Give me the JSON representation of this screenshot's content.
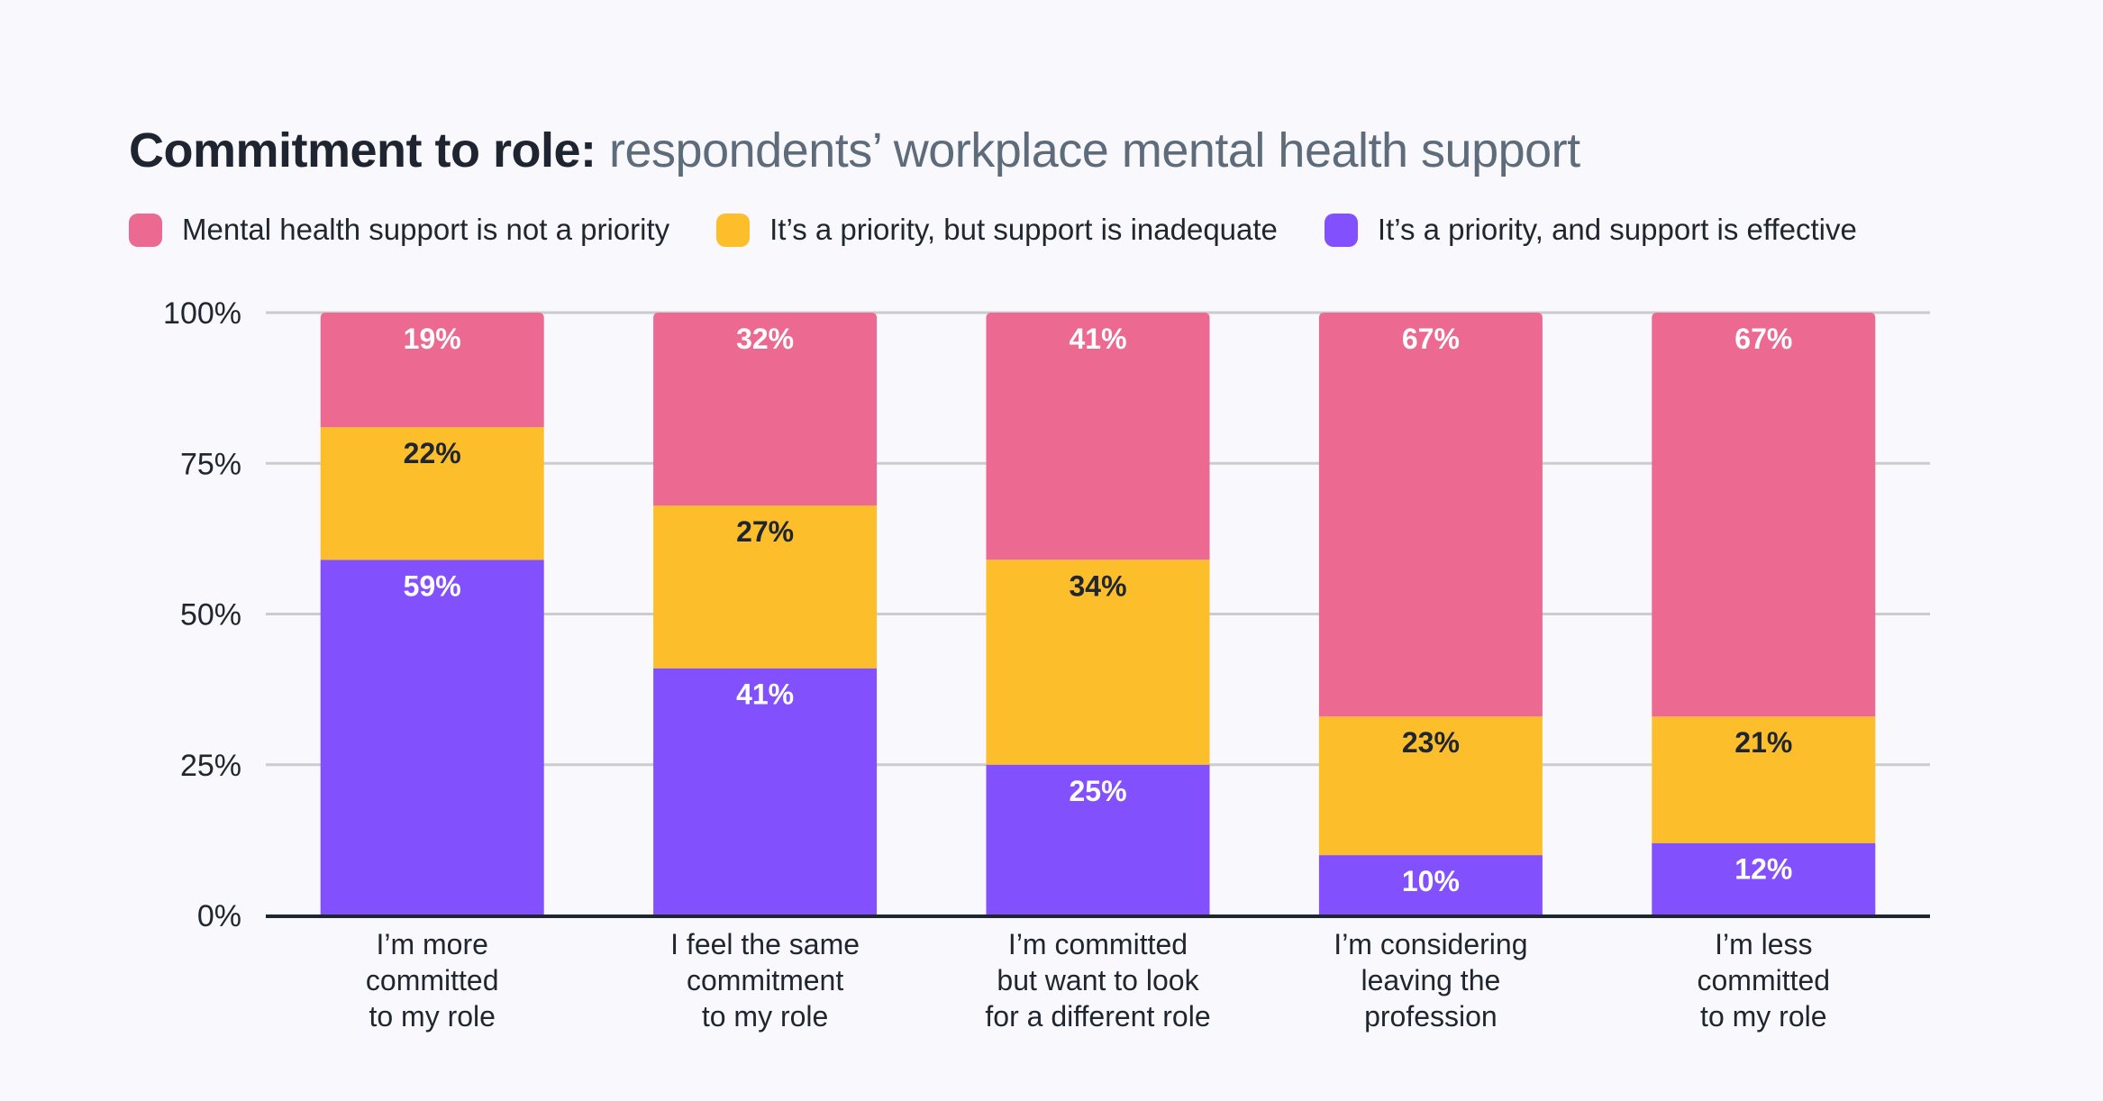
{
  "title": {
    "bold": "Commitment to role:",
    "rest": " respondents’ workplace mental health support"
  },
  "legend": [
    {
      "label": "Mental health support is not a priority",
      "color": "#ec6992"
    },
    {
      "label": "It’s a priority, but support is inadequate",
      "color": "#fdbe2b"
    },
    {
      "label": "It’s a priority, and support is effective",
      "color": "#8350fd"
    }
  ],
  "chart_data": {
    "type": "bar",
    "stacked": true,
    "title": "Commitment to role: respondents’ workplace mental health support",
    "xlabel": "",
    "ylabel": "",
    "ylim": [
      0,
      100
    ],
    "yticks": [
      "0%",
      "25%",
      "50%",
      "75%",
      "100%"
    ],
    "ytick_values": [
      0,
      25,
      50,
      75,
      100
    ],
    "grid": true,
    "legend_position": "top-left",
    "categories": [
      [
        "I’m more",
        "committed",
        "to my role"
      ],
      [
        "I feel the same",
        "commitment",
        "to my role"
      ],
      [
        "I’m committed",
        "but want to look",
        "for a different role"
      ],
      [
        "I’m considering",
        "leaving the",
        "profession"
      ],
      [
        "I’m less",
        "committed",
        "to my role"
      ]
    ],
    "series": [
      {
        "name": "It’s a priority, and support is effective",
        "color": "#8350fd",
        "label_color": "#ffffff",
        "values": [
          59,
          41,
          25,
          10,
          12
        ]
      },
      {
        "name": "It’s a priority, but support is inadequate",
        "color": "#fdbe2b",
        "label_color": "#1f2630",
        "values": [
          22,
          27,
          34,
          23,
          21
        ]
      },
      {
        "name": "Mental health support is not a priority",
        "color": "#ec6992",
        "label_color": "#ffffff",
        "values": [
          19,
          32,
          41,
          67,
          67
        ]
      }
    ]
  }
}
